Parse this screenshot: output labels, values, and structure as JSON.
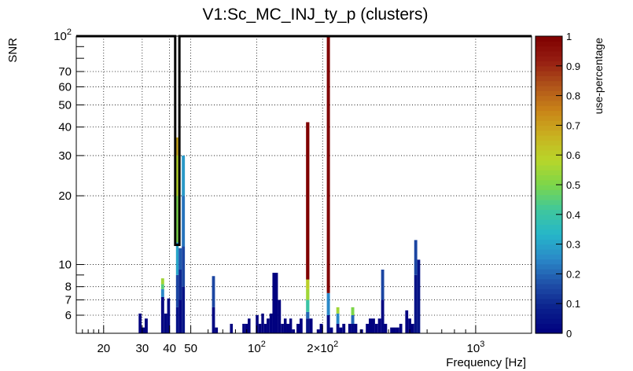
{
  "chart_data": {
    "type": "bar",
    "title": "V1:Sc_MC_INJ_ty_p (clusters)",
    "xlabel": "Frequency [Hz]",
    "ylabel": "SNR",
    "colorbar_label": "use-percentage",
    "x_scale": "log",
    "y_scale": "log",
    "xlim": [
      15,
      1800
    ],
    "ylim": [
      5,
      100
    ],
    "grid": true,
    "x_ticks": [
      {
        "value": 20,
        "label": "20"
      },
      {
        "value": 30,
        "label": "30"
      },
      {
        "value": 40,
        "label": "40"
      },
      {
        "value": 50,
        "label": "50"
      },
      {
        "value": 100,
        "label": "10",
        "exp": "2"
      },
      {
        "value": 200,
        "label": "2×10",
        "exp": "2"
      },
      {
        "value": 1000,
        "label": "10",
        "exp": "3"
      }
    ],
    "y_ticks": [
      {
        "value": 6,
        "label": "6"
      },
      {
        "value": 7,
        "label": "7"
      },
      {
        "value": 8,
        "label": "8"
      },
      {
        "value": 10,
        "label": "10"
      },
      {
        "value": 20,
        "label": "20"
      },
      {
        "value": 30,
        "label": "30"
      },
      {
        "value": 40,
        "label": "40"
      },
      {
        "value": 50,
        "label": "50"
      },
      {
        "value": 60,
        "label": "60"
      },
      {
        "value": 70,
        "label": "70"
      },
      {
        "value": 100,
        "label": "10",
        "exp": "2"
      }
    ],
    "colorbar": {
      "range": [
        0,
        1
      ],
      "ticks": [
        "0",
        "0.1",
        "0.2",
        "0.3",
        "0.4",
        "0.5",
        "0.6",
        "0.7",
        "0.8",
        "0.9",
        "1"
      ],
      "palette": [
        "#00007f",
        "#0a1f8c",
        "#1f4fa8",
        "#2a88c8",
        "#26b6c9",
        "#3fc79c",
        "#7cd64a",
        "#b8d62a",
        "#c9b120",
        "#c98418",
        "#b0541a",
        "#961e12",
        "#7f0000"
      ]
    },
    "bars": [
      {
        "f0": 28.9,
        "f1": 29.8,
        "snr": 6.1,
        "segments": [
          [
            6.1,
            0.0
          ]
        ]
      },
      {
        "f0": 29.8,
        "f1": 30.8,
        "snr": 5.3,
        "segments": [
          [
            5.3,
            0.0
          ]
        ]
      },
      {
        "f0": 30.8,
        "f1": 31.8,
        "snr": 5.8,
        "segments": [
          [
            5.8,
            0.0
          ]
        ]
      },
      {
        "f0": 36.6,
        "f1": 37.8,
        "snr": 8.7,
        "segments": [
          [
            7.2,
            0.02
          ],
          [
            7.8,
            0.25
          ],
          [
            8.2,
            0.45
          ],
          [
            8.7,
            0.55
          ]
        ]
      },
      {
        "f0": 37.8,
        "f1": 39.0,
        "snr": 6.1,
        "segments": [
          [
            6.1,
            0.02
          ]
        ]
      },
      {
        "f0": 39.0,
        "f1": 40.2,
        "snr": 7.1,
        "segments": [
          [
            7.1,
            0.02
          ]
        ]
      },
      {
        "f0": 42.8,
        "f1": 44.0,
        "snr": 36.0,
        "segments": [
          [
            6.5,
            0.05
          ],
          [
            9.0,
            0.15
          ],
          [
            12.5,
            0.3
          ],
          [
            20.0,
            0.5
          ],
          [
            30.0,
            0.58
          ],
          [
            36.0,
            0.68
          ]
        ]
      },
      {
        "f0": 44.0,
        "f1": 45.5,
        "snr": 11.8,
        "segments": [
          [
            7.0,
            0.02
          ],
          [
            9.5,
            0.1
          ],
          [
            11.8,
            0.18
          ]
        ]
      },
      {
        "f0": 45.5,
        "f1": 47.0,
        "snr": 30.0,
        "segments": [
          [
            8.0,
            0.05
          ],
          [
            12.0,
            0.15
          ],
          [
            20.0,
            0.22
          ],
          [
            30.0,
            0.28
          ]
        ]
      },
      {
        "f0": 47.0,
        "f1": 48.5,
        "snr": 5.0,
        "segments": [
          [
            5.0,
            0.0
          ]
        ]
      },
      {
        "f0": 62.5,
        "f1": 64.5,
        "snr": 8.9,
        "segments": [
          [
            6.5,
            0.02
          ],
          [
            8.9,
            0.15
          ]
        ]
      },
      {
        "f0": 64.5,
        "f1": 66.5,
        "snr": 5.3,
        "segments": [
          [
            5.3,
            0.0
          ]
        ]
      },
      {
        "f0": 75.5,
        "f1": 77.8,
        "snr": 5.5,
        "segments": [
          [
            5.5,
            0.0
          ]
        ]
      },
      {
        "f0": 86.0,
        "f1": 88.5,
        "snr": 5.5,
        "segments": [
          [
            5.5,
            0.0
          ]
        ]
      },
      {
        "f0": 88.5,
        "f1": 91.0,
        "snr": 5.5,
        "segments": [
          [
            5.5,
            0.0
          ]
        ]
      },
      {
        "f0": 91.0,
        "f1": 93.7,
        "snr": 5.8,
        "segments": [
          [
            5.8,
            0.0
          ]
        ]
      },
      {
        "f0": 99.0,
        "f1": 102.0,
        "snr": 6.0,
        "segments": [
          [
            6.0,
            0.0
          ]
        ]
      },
      {
        "f0": 102.0,
        "f1": 105.0,
        "snr": 5.5,
        "segments": [
          [
            5.5,
            0.0
          ]
        ]
      },
      {
        "f0": 105.0,
        "f1": 108.0,
        "snr": 6.1,
        "segments": [
          [
            6.1,
            0.0
          ]
        ]
      },
      {
        "f0": 108.0,
        "f1": 111.0,
        "snr": 5.5,
        "segments": [
          [
            5.5,
            0.0
          ]
        ]
      },
      {
        "f0": 111.0,
        "f1": 114.5,
        "snr": 5.8,
        "segments": [
          [
            5.8,
            0.0
          ]
        ]
      },
      {
        "f0": 114.5,
        "f1": 118.0,
        "snr": 6.1,
        "segments": [
          [
            6.1,
            0.0
          ]
        ]
      },
      {
        "f0": 118.0,
        "f1": 121.5,
        "snr": 9.2,
        "segments": [
          [
            9.2,
            0.0
          ]
        ]
      },
      {
        "f0": 121.5,
        "f1": 125.0,
        "snr": 9.2,
        "segments": [
          [
            9.2,
            0.0
          ]
        ]
      },
      {
        "f0": 125.0,
        "f1": 129.0,
        "snr": 7.0,
        "segments": [
          [
            7.0,
            0.0
          ]
        ]
      },
      {
        "f0": 129.0,
        "f1": 133.0,
        "snr": 5.5,
        "segments": [
          [
            5.5,
            0.0
          ]
        ]
      },
      {
        "f0": 133.0,
        "f1": 137.0,
        "snr": 5.8,
        "segments": [
          [
            5.8,
            0.0
          ]
        ]
      },
      {
        "f0": 137.0,
        "f1": 141.0,
        "snr": 5.5,
        "segments": [
          [
            5.5,
            0.0
          ]
        ]
      },
      {
        "f0": 141.0,
        "f1": 145.0,
        "snr": 5.8,
        "segments": [
          [
            5.8,
            0.0
          ]
        ]
      },
      {
        "f0": 145.0,
        "f1": 149.5,
        "snr": 5.2,
        "segments": [
          [
            5.2,
            0.0
          ]
        ]
      },
      {
        "f0": 152.0,
        "f1": 157.0,
        "snr": 5.5,
        "segments": [
          [
            5.5,
            0.0
          ]
        ]
      },
      {
        "f0": 157.0,
        "f1": 162.0,
        "snr": 5.8,
        "segments": [
          [
            5.8,
            0.0
          ]
        ]
      },
      {
        "f0": 168.0,
        "f1": 174.0,
        "snr": 42.0,
        "segments": [
          [
            5.8,
            0.05
          ],
          [
            6.2,
            0.2
          ],
          [
            7.0,
            0.4
          ],
          [
            7.8,
            0.55
          ],
          [
            8.6,
            0.6
          ],
          [
            42.0,
            1.0
          ]
        ]
      },
      {
        "f0": 174.0,
        "f1": 180.0,
        "snr": 5.8,
        "segments": [
          [
            5.8,
            0.0
          ]
        ]
      },
      {
        "f0": 188.0,
        "f1": 194.0,
        "snr": 5.2,
        "segments": [
          [
            5.2,
            0.0
          ]
        ]
      },
      {
        "f0": 194.0,
        "f1": 200.5,
        "snr": 5.5,
        "segments": [
          [
            5.5,
            0.0
          ]
        ]
      },
      {
        "f0": 209.0,
        "f1": 216.0,
        "snr": 100.0,
        "segments": [
          [
            6.0,
            0.03
          ],
          [
            7.5,
            0.25
          ],
          [
            100.0,
            1.0
          ]
        ]
      },
      {
        "f0": 216.0,
        "f1": 223.0,
        "snr": 5.3,
        "segments": [
          [
            5.3,
            0.0
          ]
        ]
      },
      {
        "f0": 231.0,
        "f1": 238.5,
        "snr": 6.5,
        "segments": [
          [
            5.5,
            0.02
          ],
          [
            6.1,
            0.25
          ],
          [
            6.5,
            0.55
          ]
        ]
      },
      {
        "f0": 238.5,
        "f1": 246.0,
        "snr": 5.3,
        "segments": [
          [
            5.3,
            0.0
          ]
        ]
      },
      {
        "f0": 246.0,
        "f1": 254.0,
        "snr": 5.5,
        "segments": [
          [
            5.5,
            0.0
          ]
        ]
      },
      {
        "f0": 262.0,
        "f1": 270.0,
        "snr": 5.5,
        "segments": [
          [
            5.5,
            0.0
          ]
        ]
      },
      {
        "f0": 270.0,
        "f1": 279.0,
        "snr": 6.5,
        "segments": [
          [
            5.5,
            0.02
          ],
          [
            6.0,
            0.2
          ],
          [
            6.5,
            0.5
          ]
        ]
      },
      {
        "f0": 279.0,
        "f1": 288.0,
        "snr": 5.5,
        "segments": [
          [
            5.5,
            0.0
          ]
        ]
      },
      {
        "f0": 296.0,
        "f1": 306.0,
        "snr": 5.2,
        "segments": [
          [
            5.2,
            0.0
          ]
        ]
      },
      {
        "f0": 315.0,
        "f1": 325.0,
        "snr": 5.5,
        "segments": [
          [
            5.5,
            0.0
          ]
        ]
      },
      {
        "f0": 325.0,
        "f1": 336.0,
        "snr": 5.8,
        "segments": [
          [
            5.8,
            0.0
          ]
        ]
      },
      {
        "f0": 336.0,
        "f1": 347.0,
        "snr": 5.8,
        "segments": [
          [
            5.8,
            0.0
          ]
        ]
      },
      {
        "f0": 347.0,
        "f1": 358.0,
        "snr": 5.5,
        "segments": [
          [
            5.5,
            0.0
          ]
        ]
      },
      {
        "f0": 358.0,
        "f1": 370.0,
        "snr": 5.8,
        "segments": [
          [
            5.8,
            0.0
          ]
        ]
      },
      {
        "f0": 370.0,
        "f1": 382.0,
        "snr": 9.5,
        "segments": [
          [
            7.0,
            0.02
          ],
          [
            9.5,
            0.15
          ]
        ]
      },
      {
        "f0": 382.0,
        "f1": 394.0,
        "snr": 5.5,
        "segments": [
          [
            5.5,
            0.0
          ]
        ]
      },
      {
        "f0": 407.0,
        "f1": 420.0,
        "snr": 5.3,
        "segments": [
          [
            5.3,
            0.0
          ]
        ]
      },
      {
        "f0": 420.0,
        "f1": 434.0,
        "snr": 5.3,
        "segments": [
          [
            5.3,
            0.0
          ]
        ]
      },
      {
        "f0": 434.0,
        "f1": 448.0,
        "snr": 5.3,
        "segments": [
          [
            5.3,
            0.0
          ]
        ]
      },
      {
        "f0": 448.0,
        "f1": 462.0,
        "snr": 5.5,
        "segments": [
          [
            5.5,
            0.0
          ]
        ]
      },
      {
        "f0": 477.0,
        "f1": 492.0,
        "snr": 6.3,
        "segments": [
          [
            6.3,
            0.0
          ]
        ]
      },
      {
        "f0": 492.0,
        "f1": 508.0,
        "snr": 5.8,
        "segments": [
          [
            5.8,
            0.0
          ]
        ]
      },
      {
        "f0": 508.0,
        "f1": 524.0,
        "snr": 5.5,
        "segments": [
          [
            5.5,
            0.0
          ]
        ]
      },
      {
        "f0": 524.0,
        "f1": 541.0,
        "snr": 12.8,
        "segments": [
          [
            9.0,
            0.05
          ],
          [
            12.8,
            0.15
          ]
        ]
      },
      {
        "f0": 541.0,
        "f1": 558.0,
        "snr": 10.5,
        "segments": [
          [
            10.5,
            0.05
          ]
        ]
      }
    ]
  }
}
